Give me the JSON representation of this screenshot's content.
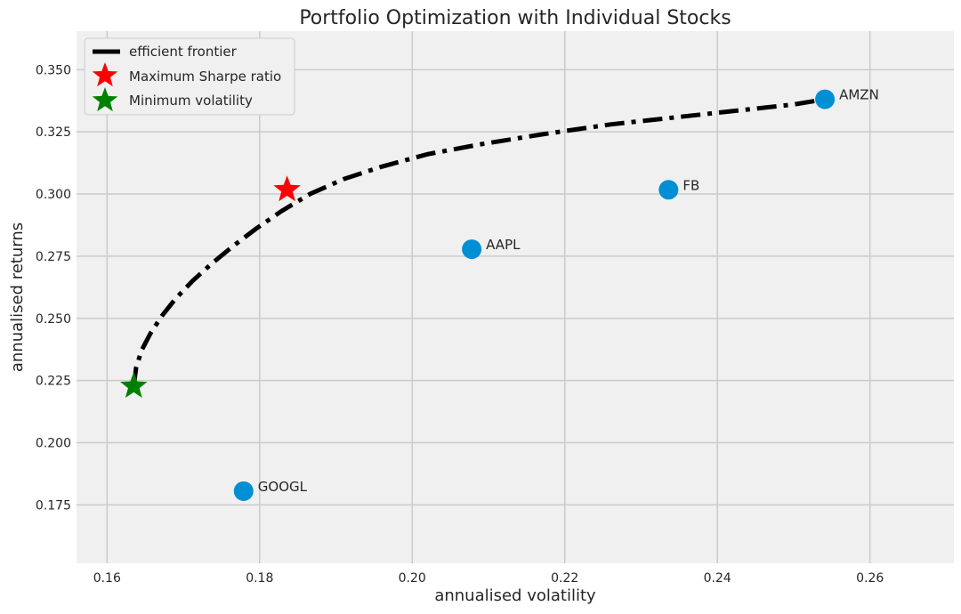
{
  "chart_data": {
    "type": "scatter",
    "title": "Portfolio Optimization with Individual Stocks",
    "xlabel": "annualised volatility",
    "ylabel": "annualised returns",
    "xlim": [
      0.156,
      0.271
    ],
    "ylim": [
      0.1515,
      0.3655
    ],
    "x_ticks": [
      "0.16",
      "0.18",
      "0.20",
      "0.22",
      "0.24",
      "0.26"
    ],
    "y_ticks": [
      "0.175",
      "0.200",
      "0.225",
      "0.250",
      "0.275",
      "0.300",
      "0.325",
      "0.350"
    ],
    "grid": true,
    "background_color": "#f0f0f0",
    "grid_color": "#cbcbcb",
    "legend_position": "top-left",
    "legend": [
      {
        "label": "efficient frontier",
        "marker": "line",
        "color": "#000000"
      },
      {
        "label": "Maximum Sharpe ratio",
        "marker": "star",
        "color": "#ff0000"
      },
      {
        "label": "Minimum volatility",
        "marker": "star",
        "color": "#008000"
      }
    ],
    "stocks": [
      {
        "name": "AAPL",
        "x": 0.2078,
        "y": 0.2778
      },
      {
        "name": "AMZN",
        "x": 0.2541,
        "y": 0.3381
      },
      {
        "name": "FB",
        "x": 0.2336,
        "y": 0.3017
      },
      {
        "name": "GOOGL",
        "x": 0.1779,
        "y": 0.1805
      }
    ],
    "stock_color": "#008fd5",
    "max_sharpe": {
      "x": 0.1836,
      "y": 0.3017
    },
    "min_volatility": {
      "x": 0.1635,
      "y": 0.2227
    },
    "efficient_frontier": {
      "color": "#000000",
      "style": "dash-dot",
      "x": [
        0.1635,
        0.1638,
        0.1645,
        0.1657,
        0.1672,
        0.169,
        0.1712,
        0.1737,
        0.1765,
        0.1795,
        0.1828,
        0.1866,
        0.191,
        0.196,
        0.202,
        0.209,
        0.217,
        0.226,
        0.235,
        0.244,
        0.25,
        0.2541
      ],
      "y": [
        0.2227,
        0.23,
        0.237,
        0.244,
        0.251,
        0.258,
        0.265,
        0.272,
        0.279,
        0.286,
        0.293,
        0.3,
        0.306,
        0.311,
        0.316,
        0.32,
        0.324,
        0.328,
        0.331,
        0.334,
        0.336,
        0.3381
      ]
    }
  }
}
